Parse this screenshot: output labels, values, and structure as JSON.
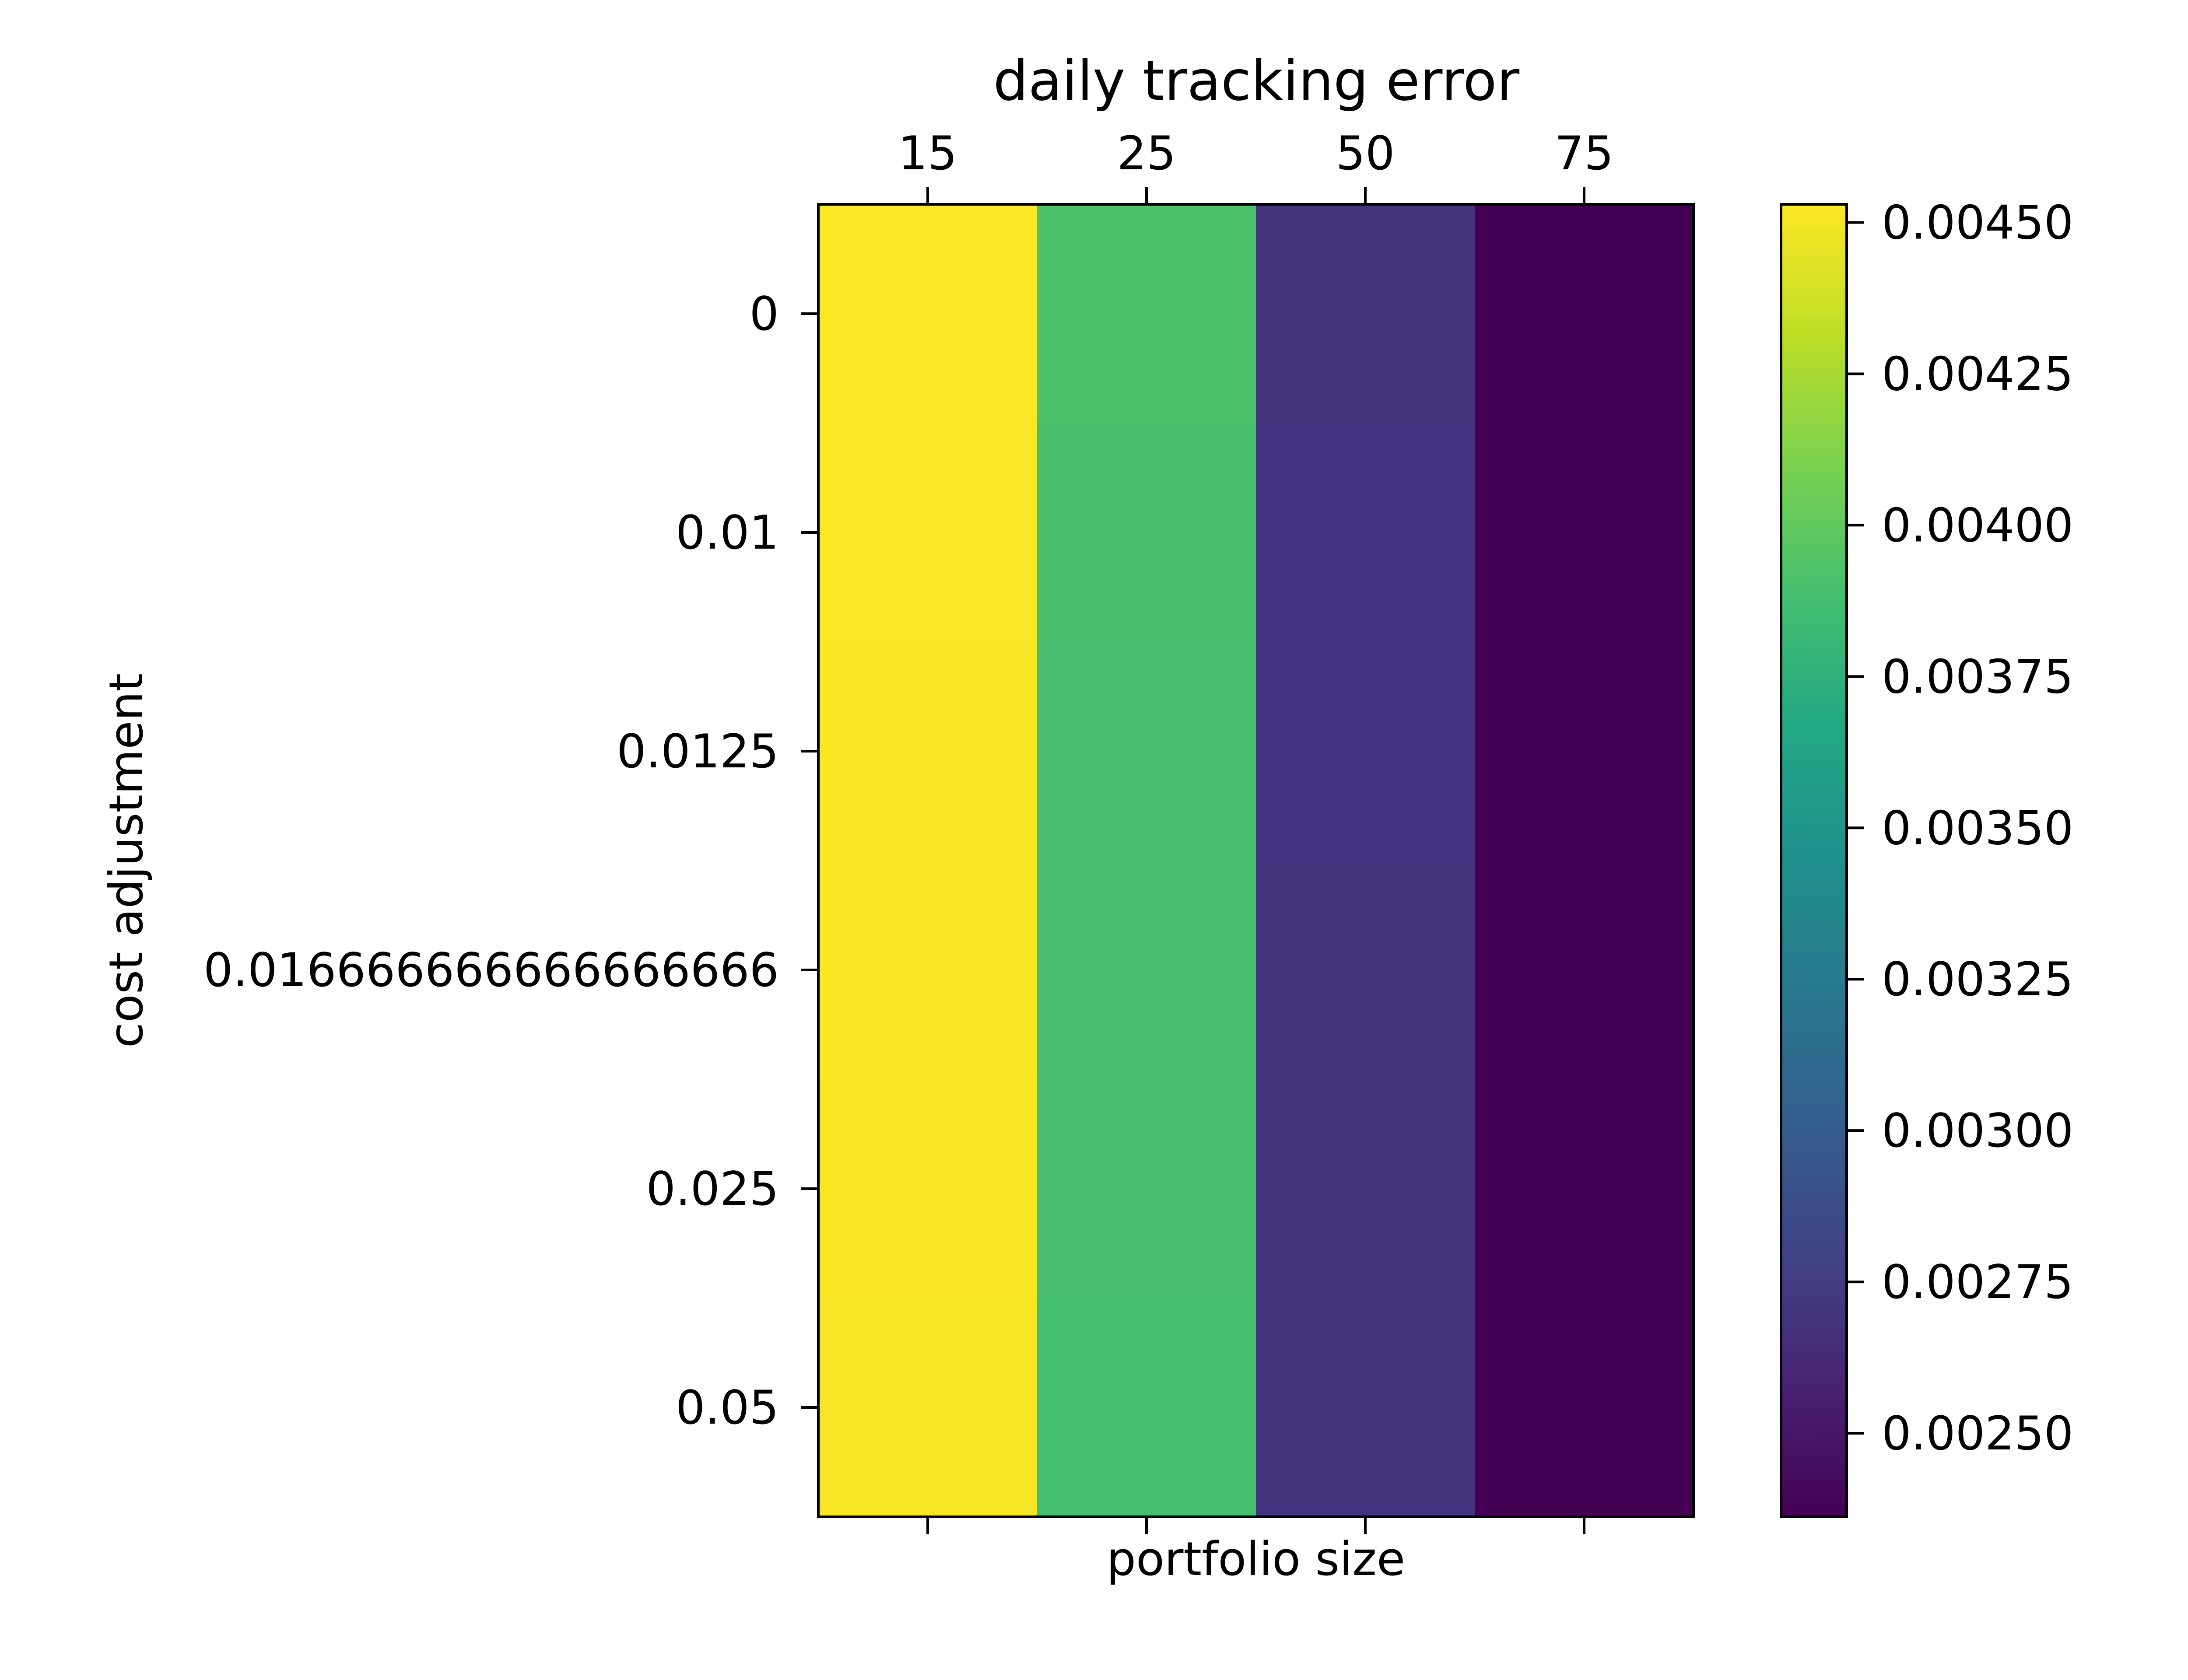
{
  "chart_data": {
    "type": "heatmap",
    "title": "daily tracking error",
    "xlabel": "portfolio size",
    "ylabel": "cost adjustment",
    "x_categories": [
      "15",
      "25",
      "50",
      "75"
    ],
    "y_categories": [
      "0",
      "0.01",
      "0.0125",
      "0.016666666666666666",
      "0.025",
      "0.05"
    ],
    "values": [
      [
        0.00452,
        0.00392,
        0.002695,
        0.002362
      ],
      [
        0.00452,
        0.0039,
        0.00269,
        0.002362
      ],
      [
        0.004517,
        0.003895,
        0.002688,
        0.002362
      ],
      [
        0.004515,
        0.00389,
        0.002687,
        0.002362
      ],
      [
        0.004512,
        0.00389,
        0.002686,
        0.002362
      ],
      [
        0.00451,
        0.003885,
        0.002685,
        0.002362
      ]
    ],
    "colormap": "viridis",
    "vmin": 0.002362,
    "vmax": 0.00453,
    "colorbar": {
      "ticks": [
        0.0025,
        0.00275,
        0.003,
        0.00325,
        0.0035,
        0.00375,
        0.004,
        0.00425,
        0.0045
      ],
      "tick_labels": [
        "0.00250",
        "0.00275",
        "0.00300",
        "0.00325",
        "0.00350",
        "0.00375",
        "0.00400",
        "0.00425",
        "0.00450"
      ]
    }
  }
}
